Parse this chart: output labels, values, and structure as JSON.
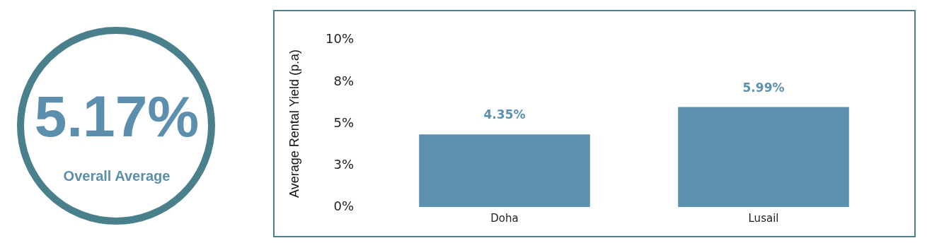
{
  "chart_data": [
    {
      "type": "other",
      "title": "5.17%",
      "subtitle": "Overall Average",
      "color": "#5b8fad"
    },
    {
      "type": "bar",
      "ylabel": "Average Rental Yield (p.a)",
      "categories": [
        "Doha",
        "Lusail"
      ],
      "series": [
        {
          "color": "#5b91ae",
          "values": [
            4.35,
            5.99
          ],
          "value_labels": [
            "4.35%",
            "5.99%"
          ]
        }
      ],
      "ylim": [
        0,
        10
      ],
      "yticks": [
        {
          "value": 0,
          "label": "0%"
        },
        {
          "value": 2.5,
          "label": "3%"
        },
        {
          "value": 5,
          "label": "5%"
        },
        {
          "value": 7.5,
          "label": "8%"
        },
        {
          "value": 10,
          "label": "10%"
        }
      ],
      "grid": false,
      "legend": false
    }
  ]
}
